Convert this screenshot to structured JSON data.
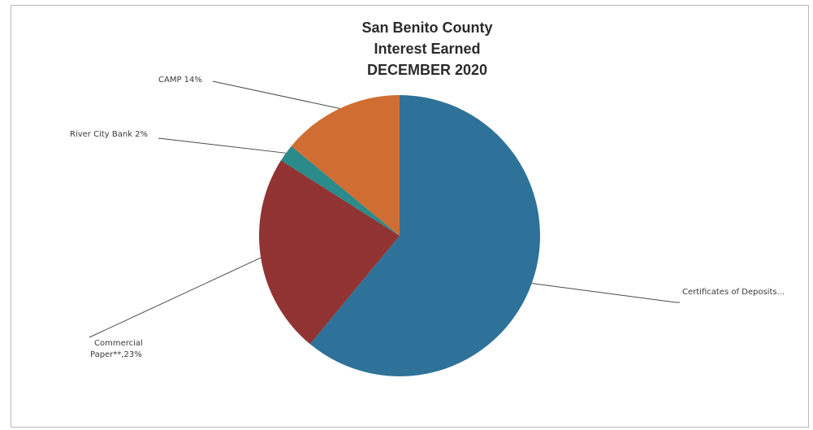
{
  "chart_data": {
    "type": "pie",
    "title": "San Benito County",
    "subtitle_lines": [
      "Interest Earned",
      "DECEMBER 2020"
    ],
    "slices": [
      {
        "label": "Certificates of Deposits",
        "value": 61,
        "color": "#2e7299",
        "label_text": "Certificates of Deposits..."
      },
      {
        "label": "Commercial Paper**",
        "value": 23,
        "color": "#913333",
        "label_text_lines": [
          "Commercial",
          "Paper**,23%"
        ]
      },
      {
        "label": "River City Bank",
        "value": 2,
        "color": "#2b8a8a",
        "label_text": "River City Bank 2%"
      },
      {
        "label": "CAMP",
        "value": 14,
        "color": "#d06d32",
        "label_text": "CAMP 14%"
      }
    ],
    "legend": "none"
  }
}
